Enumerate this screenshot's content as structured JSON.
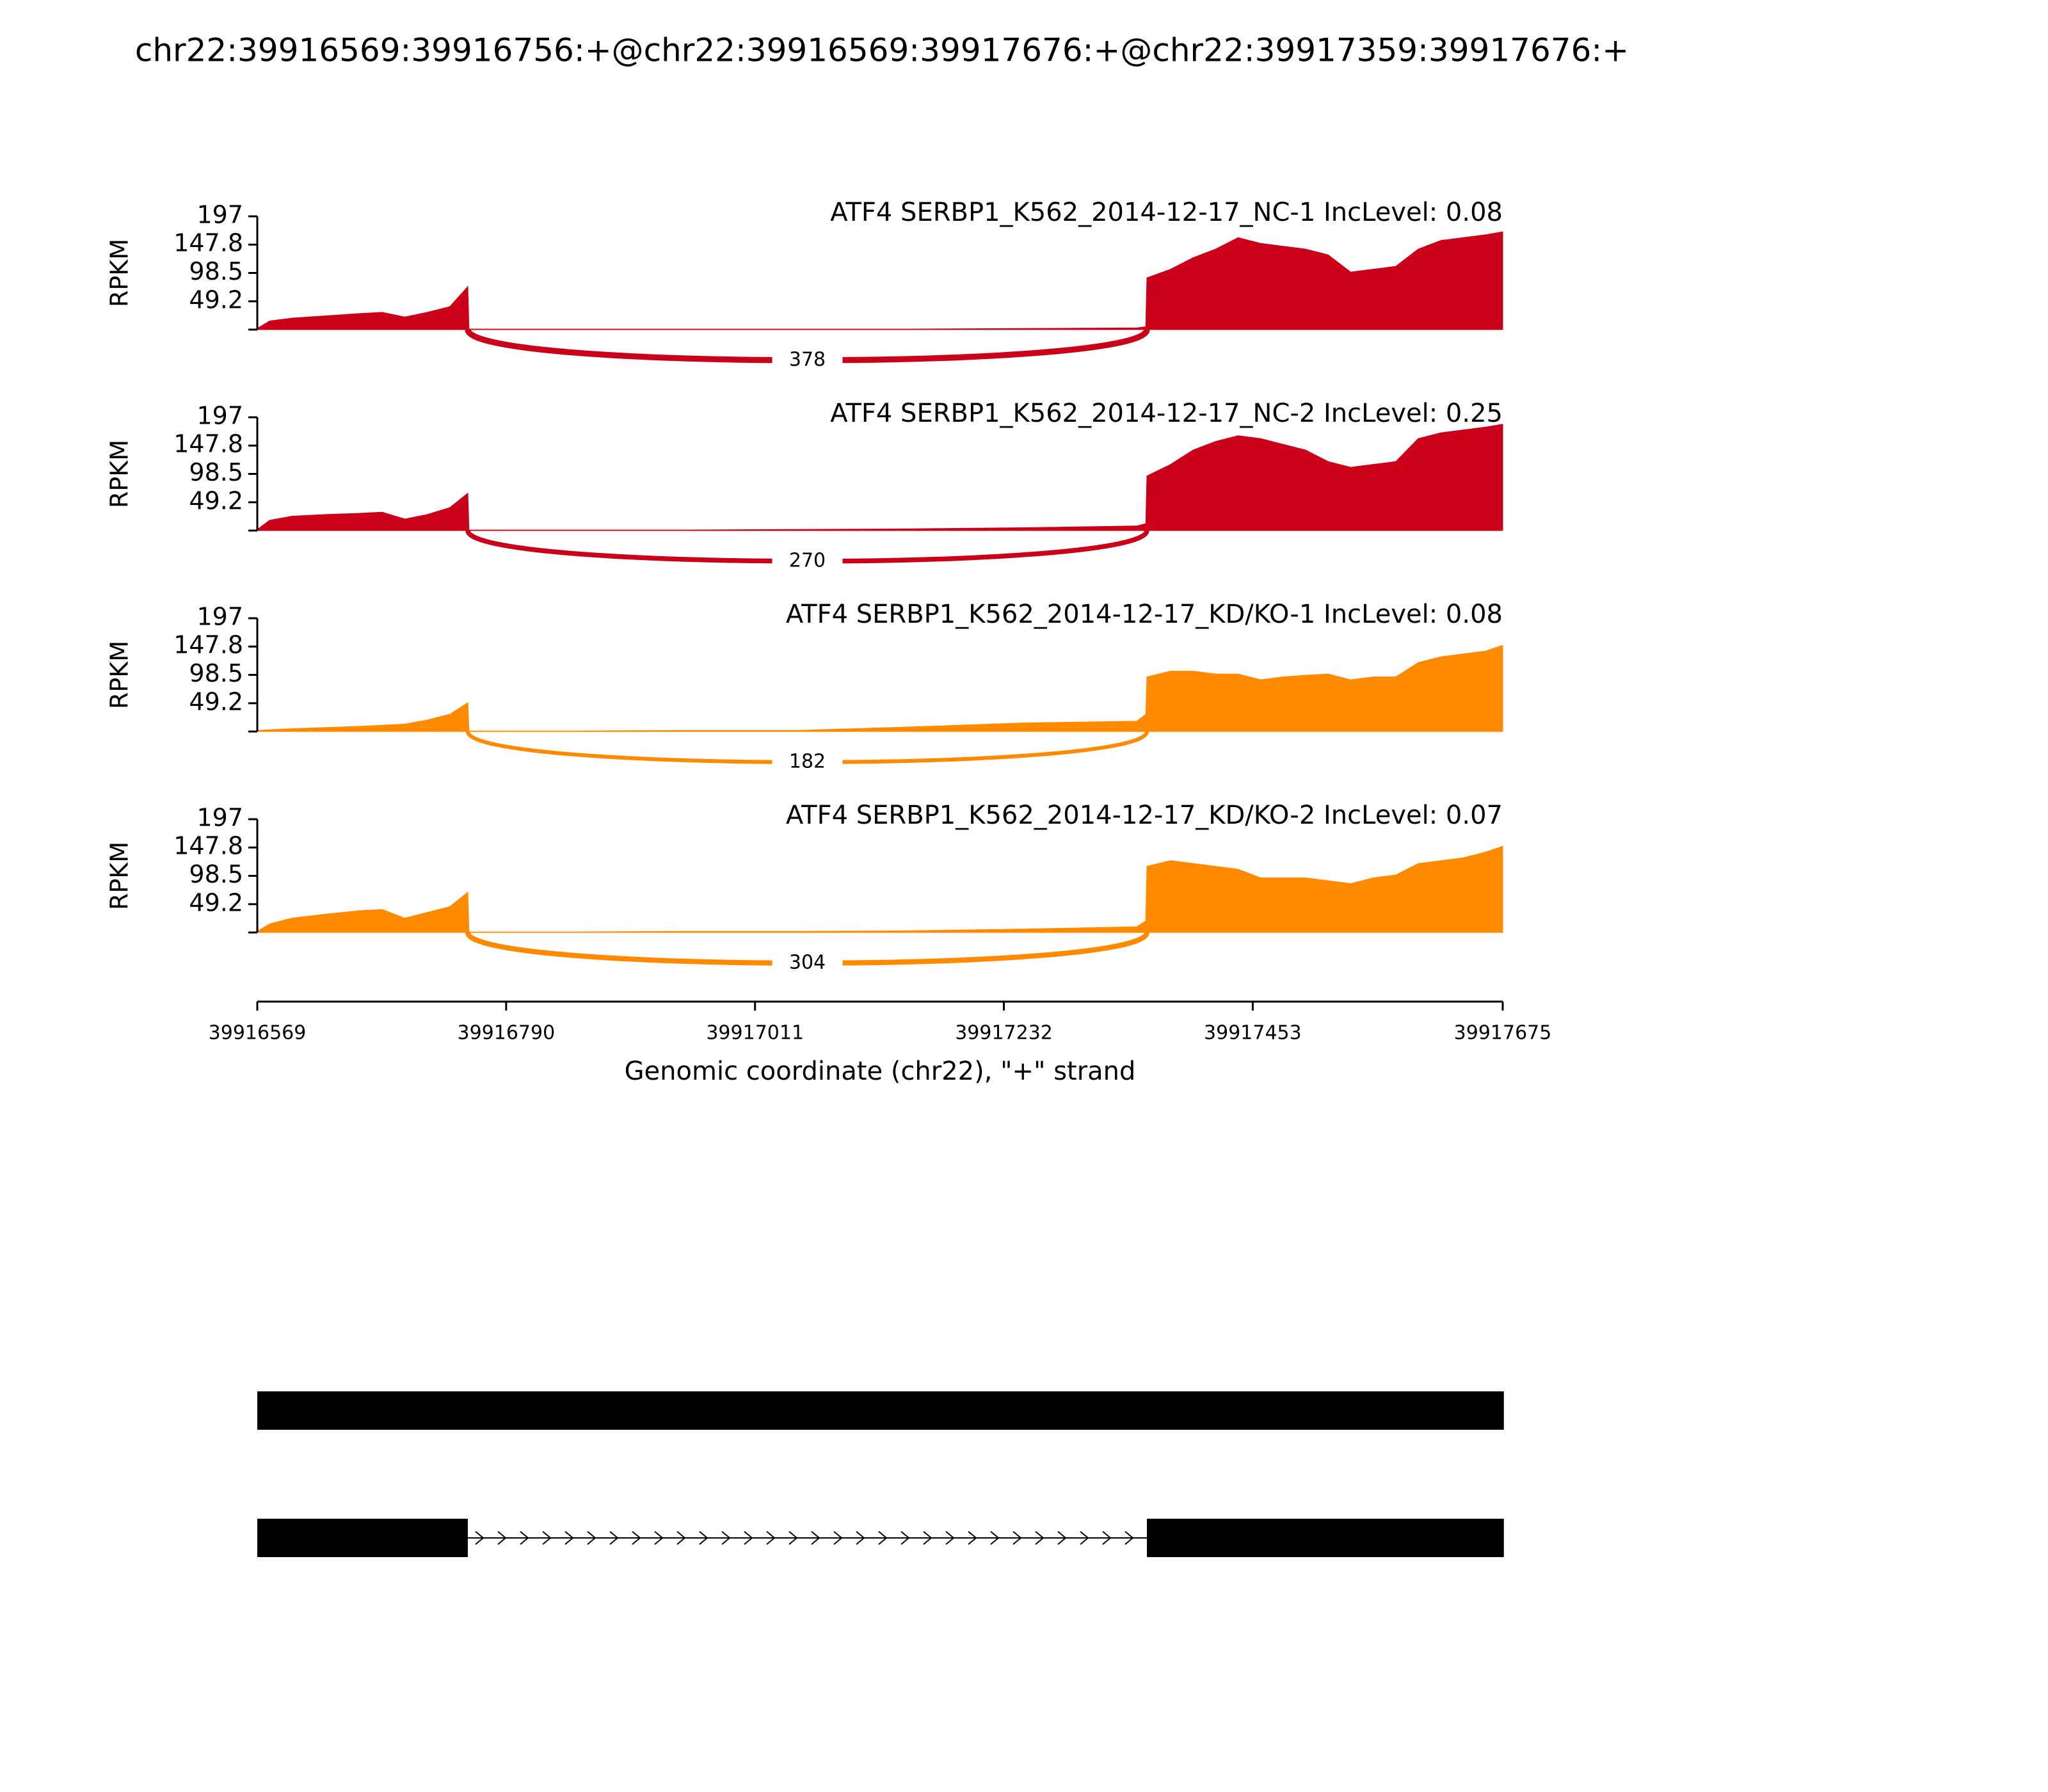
{
  "chart_data": {
    "type": "sashimi",
    "title": "chr22:39916569:39916756:+@chr22:39916569:39917676:+@chr22:39917359:39917676:+",
    "xlim": [
      39916569,
      39917675
    ],
    "xticks": [
      39916569,
      39916790,
      39917011,
      39917232,
      39917453,
      39917675
    ],
    "xlabel": "Genomic coordinate (chr22), \"+\" strand",
    "tracks": [
      {
        "type": "area",
        "title": "ATF4 SERBP1_K562_2014-12-17_NC-1 IncLevel: 0.08",
        "color": "#cb0019",
        "ylabel": "RPKM",
        "ylim": [
          0,
          197
        ],
        "yticks": [
          49.2,
          98.5,
          147.8,
          197
        ],
        "x": [
          39916569,
          39916580,
          39916600,
          39916630,
          39916660,
          39916680,
          39916700,
          39916720,
          39916740,
          39916756,
          39916757,
          39916850,
          39916950,
          39917050,
          39917150,
          39917250,
          39917350,
          39917358,
          39917359,
          39917380,
          39917400,
          39917420,
          39917440,
          39917460,
          39917480,
          39917500,
          39917520,
          39917540,
          39917560,
          39917580,
          39917600,
          39917620,
          39917640,
          39917660,
          39917675
        ],
        "values": [
          2,
          15,
          20,
          24,
          28,
          30,
          22,
          30,
          40,
          75,
          1,
          1,
          1,
          1,
          1,
          2,
          3,
          5,
          90,
          105,
          125,
          140,
          160,
          150,
          145,
          140,
          130,
          100,
          105,
          110,
          140,
          155,
          160,
          165,
          170
        ],
        "junctions": [
          {
            "start": 39916756,
            "end": 39917359,
            "count": 378
          }
        ]
      },
      {
        "type": "area",
        "title": "ATF4 SERBP1_K562_2014-12-17_NC-2 IncLevel: 0.25",
        "color": "#cb0019",
        "ylabel": "RPKM",
        "ylim": [
          0,
          197
        ],
        "yticks": [
          49.2,
          98.5,
          147.8,
          197
        ],
        "x": [
          39916569,
          39916580,
          39916600,
          39916630,
          39916660,
          39916680,
          39916700,
          39916720,
          39916740,
          39916756,
          39916757,
          39916850,
          39916950,
          39917050,
          39917150,
          39917250,
          39917350,
          39917358,
          39917359,
          39917380,
          39917400,
          39917420,
          39917440,
          39917460,
          39917480,
          39917500,
          39917520,
          39917540,
          39917560,
          39917580,
          39917600,
          39917620,
          39917640,
          39917660,
          39917675
        ],
        "values": [
          2,
          18,
          25,
          28,
          30,
          32,
          20,
          28,
          40,
          65,
          1,
          1,
          1,
          2,
          3,
          5,
          8,
          12,
          95,
          115,
          140,
          155,
          165,
          160,
          150,
          140,
          120,
          110,
          115,
          120,
          160,
          170,
          175,
          180,
          185
        ],
        "junctions": [
          {
            "start": 39916756,
            "end": 39917359,
            "count": 270
          }
        ]
      },
      {
        "type": "area",
        "title": "ATF4 SERBP1_K562_2014-12-17_KD/KO-1 IncLevel: 0.08",
        "color": "#ff8a00",
        "ylabel": "RPKM",
        "ylim": [
          0,
          197
        ],
        "yticks": [
          49.2,
          98.5,
          147.8,
          197
        ],
        "x": [
          39916569,
          39916580,
          39916600,
          39916630,
          39916660,
          39916680,
          39916700,
          39916720,
          39916740,
          39916756,
          39916757,
          39916850,
          39916950,
          39917050,
          39917150,
          39917250,
          39917350,
          39917358,
          39917359,
          39917380,
          39917400,
          39917420,
          39917440,
          39917460,
          39917480,
          39917500,
          39917520,
          39917540,
          39917560,
          39917580,
          39917600,
          39917620,
          39917640,
          39917660,
          39917675
        ],
        "values": [
          2,
          3,
          5,
          7,
          9,
          11,
          13,
          20,
          30,
          50,
          1,
          1,
          2,
          2,
          8,
          15,
          18,
          30,
          95,
          105,
          105,
          100,
          100,
          90,
          95,
          98,
          100,
          90,
          95,
          95,
          120,
          130,
          135,
          140,
          150
        ],
        "junctions": [
          {
            "start": 39916756,
            "end": 39917359,
            "count": 182
          }
        ]
      },
      {
        "type": "area",
        "title": "ATF4 SERBP1_K562_2014-12-17_KD/KO-2 IncLevel: 0.07",
        "color": "#ff8a00",
        "ylabel": "RPKM",
        "ylim": [
          0,
          197
        ],
        "yticks": [
          49.2,
          98.5,
          147.8,
          197
        ],
        "x": [
          39916569,
          39916580,
          39916600,
          39916630,
          39916660,
          39916680,
          39916700,
          39916720,
          39916740,
          39916756,
          39916757,
          39916850,
          39916950,
          39917050,
          39917150,
          39917250,
          39917350,
          39917358,
          39917359,
          39917380,
          39917400,
          39917420,
          39917440,
          39917460,
          39917480,
          39917500,
          39917520,
          39917540,
          39917560,
          39917580,
          39917600,
          39917620,
          39917640,
          39917660,
          39917675
        ],
        "values": [
          2,
          15,
          25,
          32,
          38,
          40,
          25,
          35,
          45,
          70,
          1,
          1,
          2,
          2,
          3,
          6,
          10,
          20,
          115,
          125,
          120,
          115,
          110,
          95,
          95,
          95,
          90,
          85,
          95,
          100,
          120,
          125,
          130,
          140,
          150
        ],
        "junctions": [
          {
            "start": 39916756,
            "end": 39917359,
            "count": 304
          }
        ]
      }
    ],
    "gene_model": [
      {
        "exons": [
          [
            39916569,
            39917676
          ]
        ]
      },
      {
        "exons": [
          [
            39916569,
            39916756
          ],
          [
            39917359,
            39917676
          ]
        ]
      }
    ]
  }
}
